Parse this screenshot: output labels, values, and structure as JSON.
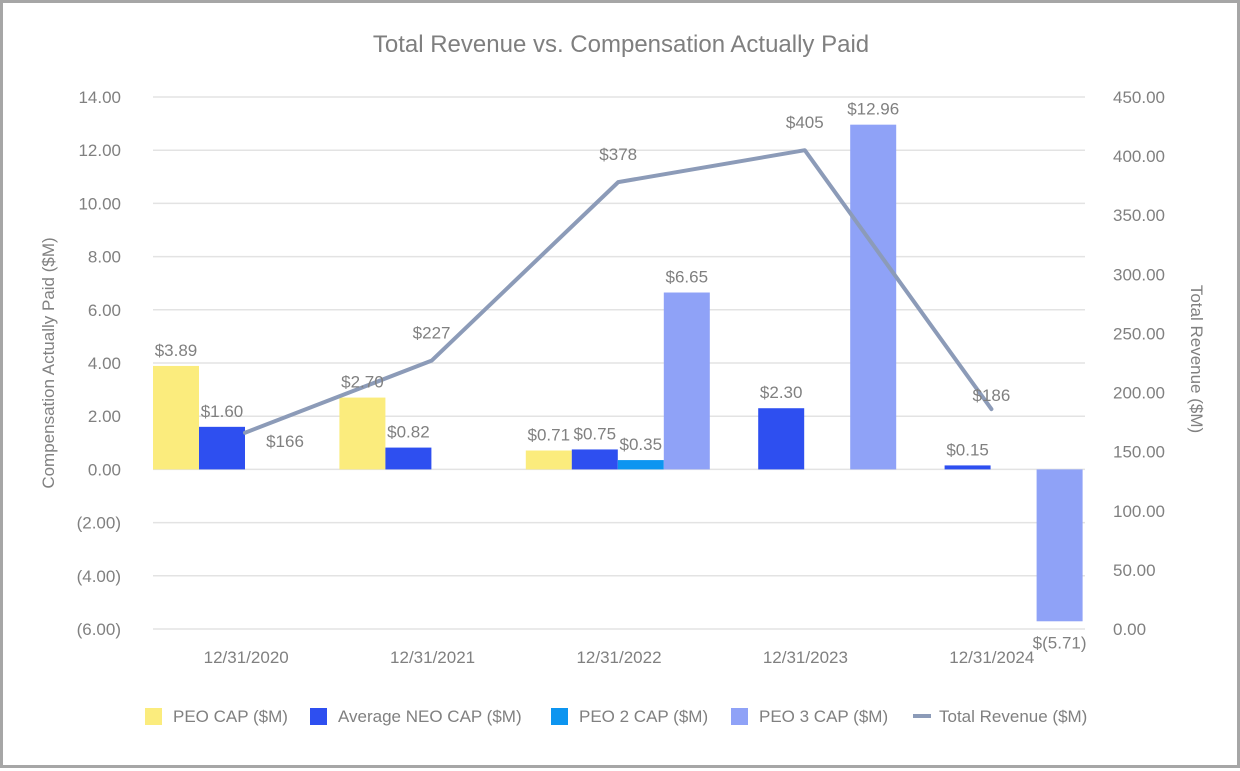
{
  "chart_data": {
    "type": "bar",
    "title": "Total Revenue vs. Compensation Actually Paid",
    "categories": [
      "12/31/2020",
      "12/31/2021",
      "12/31/2022",
      "12/31/2023",
      "12/31/2024"
    ],
    "ylabel": "Compensation Actually Paid ($M)",
    "y2label": "Total Revenue ($M)",
    "ylim": [
      -6,
      14
    ],
    "y2lim": [
      0,
      450
    ],
    "yticks": [
      "14.00",
      "12.00",
      "10.00",
      "8.00",
      "6.00",
      "4.00",
      "2.00",
      "0.00",
      "(2.00)",
      "(4.00)",
      "(6.00)"
    ],
    "y2ticks": [
      "450.00",
      "400.00",
      "350.00",
      "300.00",
      "250.00",
      "200.00",
      "150.00",
      "100.00",
      "50.00",
      "0.00"
    ],
    "grid": true,
    "legend_position": "bottom",
    "series": [
      {
        "name": "PEO CAP ($M)",
        "type": "bar",
        "axis": "left",
        "color": "#fbec7d",
        "values": [
          3.89,
          2.7,
          0.71,
          null,
          null
        ],
        "labels": [
          "$3.89",
          "$2.70",
          "$0.71",
          "",
          ""
        ]
      },
      {
        "name": "Average NEO CAP ($M)",
        "type": "bar",
        "axis": "left",
        "color": "#2e4ff0",
        "values": [
          1.6,
          0.82,
          0.75,
          2.3,
          0.15
        ],
        "labels": [
          "$1.60",
          "$0.82",
          "$0.75",
          "$2.30",
          "$0.15"
        ]
      },
      {
        "name": "PEO 2 CAP ($M)",
        "type": "bar",
        "axis": "left",
        "color": "#0d95f0",
        "values": [
          null,
          null,
          0.35,
          null,
          null
        ],
        "labels": [
          "",
          "",
          "$0.35",
          "",
          ""
        ]
      },
      {
        "name": "PEO 3 CAP ($M)",
        "type": "bar",
        "axis": "left",
        "color": "#8fa2f7",
        "values": [
          null,
          null,
          6.65,
          12.96,
          -5.71
        ],
        "labels": [
          "",
          "",
          "$6.65",
          "$12.96",
          "$(5.71)"
        ]
      },
      {
        "name": "Total Revenue ($M)",
        "type": "line",
        "axis": "right",
        "color": "#8c9bb8",
        "values": [
          166,
          227,
          378,
          405,
          186
        ],
        "labels": [
          "$166",
          "$227",
          "$378",
          "$405",
          "$186"
        ]
      }
    ]
  }
}
